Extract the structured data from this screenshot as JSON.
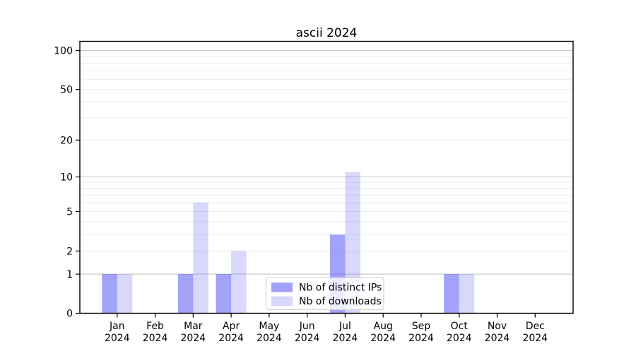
{
  "title": "ascii 2024",
  "chart_data": {
    "type": "bar",
    "title": "ascii 2024",
    "categories": [
      "Jan 2024",
      "Feb 2024",
      "Mar 2024",
      "Apr 2024",
      "May 2024",
      "Jun 2024",
      "Jul 2024",
      "Aug 2024",
      "Sep 2024",
      "Oct 2024",
      "Nov 2024",
      "Dec 2024"
    ],
    "series": [
      {
        "name": "Nb of distinct IPs",
        "color": "rgba(77,77,243,0.52)",
        "values": [
          1,
          0,
          1,
          1,
          0,
          0,
          3,
          0,
          0,
          1,
          0,
          0
        ]
      },
      {
        "name": "Nb of downloads",
        "color": "rgba(77,77,243,0.22)",
        "values": [
          1,
          0,
          6,
          2,
          0,
          0,
          11,
          0,
          0,
          1,
          0,
          0
        ]
      }
    ],
    "xlabel": "",
    "ylabel": "",
    "yscale": "log1p",
    "ylim": [
      0,
      118
    ],
    "yticks": [
      0,
      1,
      2,
      5,
      10,
      20,
      50,
      100
    ],
    "major_gridlines": [
      1,
      10,
      100
    ],
    "minor_gridlines": [
      2,
      3,
      4,
      5,
      6,
      7,
      8,
      9,
      20,
      30,
      40,
      50,
      60,
      70,
      80,
      90
    ],
    "grid": true,
    "legend_position": "lower center"
  },
  "colors": {
    "major_grid": "#c6c6c6",
    "minor_grid": "#ececec",
    "axis": "#000000",
    "legend_border": "#cccccc",
    "legend_bg": "rgba(255,255,255,0.8)"
  }
}
